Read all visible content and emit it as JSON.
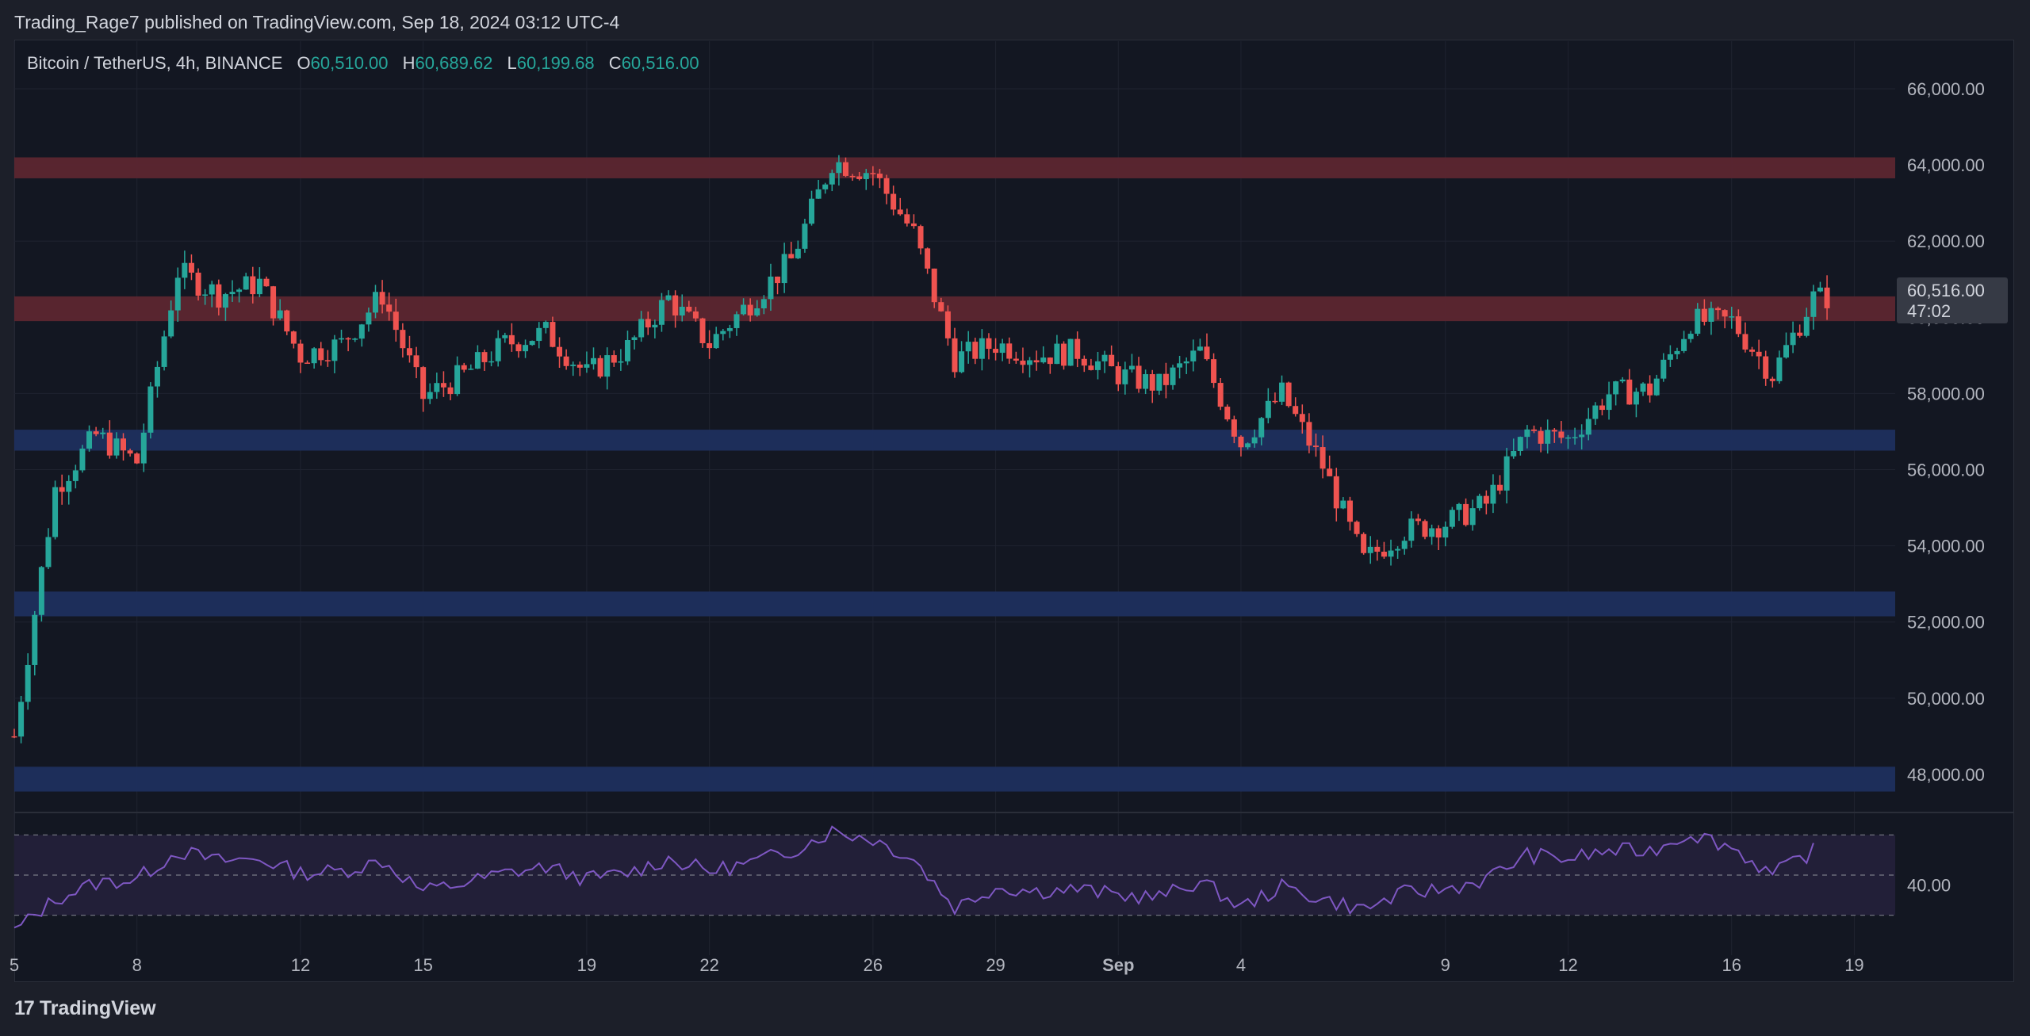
{
  "header": {
    "publisher": "Trading_Rage7 published on TradingView.com, Sep 18, 2024 03:12 UTC-4"
  },
  "legend": {
    "symbol": "Bitcoin / TetherUS, 4h, BINANCE",
    "open_label": "O",
    "open": "60,510.00",
    "high_label": "H",
    "high": "60,689.62",
    "low_label": "L",
    "low": "60,199.68",
    "close_label": "C",
    "close": "60,516.00"
  },
  "price_tag": {
    "price": "60,516.00",
    "countdown": "47:02"
  },
  "brand": {
    "logo": "17",
    "name": "TradingView"
  },
  "colors": {
    "up": "#26a69a",
    "down": "#ef5350",
    "resistance_zone": "#5c2630",
    "support_zone": "#1e2f5e",
    "rsi_line": "#7e57c2",
    "rsi_band": "#221f38"
  },
  "chart_data": [
    {
      "type": "candlestick",
      "title": "",
      "x_axis": {
        "tick_labels": [
          "5",
          "8",
          "12",
          "15",
          "19",
          "22",
          "26",
          "29",
          "Sep",
          "4",
          "9",
          "12",
          "16",
          "19"
        ],
        "tick_dates": [
          "2024-08-05",
          "2024-08-08",
          "2024-08-12",
          "2024-08-15",
          "2024-08-19",
          "2024-08-22",
          "2024-08-26",
          "2024-08-29",
          "2024-09-01",
          "2024-09-04",
          "2024-09-09",
          "2024-09-12",
          "2024-09-16",
          "2024-09-19"
        ],
        "range": [
          "2024-08-05",
          "2024-09-20"
        ]
      },
      "y_axis": {
        "tick_labels": [
          "66,000.00",
          "64,000.00",
          "62,000.00",
          "60,000.00",
          "58,000.00",
          "56,000.00",
          "54,000.00",
          "52,000.00",
          "50,000.00",
          "48,000.00"
        ],
        "range": [
          47000,
          66500
        ]
      },
      "zones": [
        {
          "kind": "resistance",
          "low": 63650,
          "high": 64200
        },
        {
          "kind": "resistance",
          "low": 59900,
          "high": 60550
        },
        {
          "kind": "support",
          "low": 56500,
          "high": 57050
        },
        {
          "kind": "support",
          "low": 52150,
          "high": 52800
        },
        {
          "kind": "support",
          "low": 47550,
          "high": 48200
        }
      ],
      "series": [
        {
          "date": "2024-08-05",
          "close": 49000
        },
        {
          "date": "2024-08-06",
          "close": 55500
        },
        {
          "date": "2024-08-07",
          "close": 56900
        },
        {
          "date": "2024-08-08",
          "close": 56200
        },
        {
          "date": "2024-08-09",
          "close": 61200
        },
        {
          "date": "2024-08-10",
          "close": 60600
        },
        {
          "date": "2024-08-11",
          "close": 60900
        },
        {
          "date": "2024-08-12",
          "close": 59000
        },
        {
          "date": "2024-08-13",
          "close": 59300
        },
        {
          "date": "2024-08-14",
          "close": 60600
        },
        {
          "date": "2024-08-15",
          "close": 57900
        },
        {
          "date": "2024-08-16",
          "close": 58500
        },
        {
          "date": "2024-08-17",
          "close": 59300
        },
        {
          "date": "2024-08-18",
          "close": 59600
        },
        {
          "date": "2024-08-19",
          "close": 58500
        },
        {
          "date": "2024-08-20",
          "close": 59200
        },
        {
          "date": "2024-08-21",
          "close": 60500
        },
        {
          "date": "2024-08-22",
          "close": 59300
        },
        {
          "date": "2024-08-23",
          "close": 60400
        },
        {
          "date": "2024-08-24",
          "close": 61500
        },
        {
          "date": "2024-08-25",
          "close": 64100
        },
        {
          "date": "2024-08-26",
          "close": 63800
        },
        {
          "date": "2024-08-27",
          "close": 62200
        },
        {
          "date": "2024-08-28",
          "close": 58900
        },
        {
          "date": "2024-08-29",
          "close": 59300
        },
        {
          "date": "2024-08-30",
          "close": 59000
        },
        {
          "date": "2024-08-31",
          "close": 59100
        },
        {
          "date": "2024-09-01",
          "close": 58500
        },
        {
          "date": "2024-09-02",
          "close": 58200
        },
        {
          "date": "2024-09-03",
          "close": 59100
        },
        {
          "date": "2024-09-04",
          "close": 56700
        },
        {
          "date": "2024-09-05",
          "close": 58000
        },
        {
          "date": "2024-09-06",
          "close": 56100
        },
        {
          "date": "2024-09-07",
          "close": 53600
        },
        {
          "date": "2024-09-08",
          "close": 54400
        },
        {
          "date": "2024-09-09",
          "close": 54600
        },
        {
          "date": "2024-09-10",
          "close": 55100
        },
        {
          "date": "2024-09-11",
          "close": 57000
        },
        {
          "date": "2024-09-12",
          "close": 56800
        },
        {
          "date": "2024-09-13",
          "close": 58000
        },
        {
          "date": "2024-09-14",
          "close": 58100
        },
        {
          "date": "2024-09-15",
          "close": 59900
        },
        {
          "date": "2024-09-16",
          "close": 59900
        },
        {
          "date": "2024-09-17",
          "close": 58500
        },
        {
          "date": "2024-09-18",
          "close": 60516
        }
      ]
    },
    {
      "type": "line",
      "title": "",
      "y_axis": {
        "tick_labels": [
          "40.00"
        ],
        "range": [
          20,
          80
        ]
      },
      "band": {
        "low": 30,
        "high": 70,
        "mid": 50
      },
      "series": [
        {
          "date": "2024-08-05",
          "value": 22
        },
        {
          "date": "2024-08-06",
          "value": 38
        },
        {
          "date": "2024-08-07",
          "value": 46
        },
        {
          "date": "2024-08-08",
          "value": 48
        },
        {
          "date": "2024-08-09",
          "value": 62
        },
        {
          "date": "2024-08-10",
          "value": 57
        },
        {
          "date": "2024-08-11",
          "value": 58
        },
        {
          "date": "2024-08-12",
          "value": 51
        },
        {
          "date": "2024-08-13",
          "value": 52
        },
        {
          "date": "2024-08-14",
          "value": 57
        },
        {
          "date": "2024-08-15",
          "value": 42
        },
        {
          "date": "2024-08-16",
          "value": 46
        },
        {
          "date": "2024-08-17",
          "value": 51
        },
        {
          "date": "2024-08-18",
          "value": 54
        },
        {
          "date": "2024-08-19",
          "value": 48
        },
        {
          "date": "2024-08-20",
          "value": 51
        },
        {
          "date": "2024-08-21",
          "value": 58
        },
        {
          "date": "2024-08-22",
          "value": 52
        },
        {
          "date": "2024-08-23",
          "value": 56
        },
        {
          "date": "2024-08-24",
          "value": 62
        },
        {
          "date": "2024-08-25",
          "value": 72
        },
        {
          "date": "2024-08-26",
          "value": 68
        },
        {
          "date": "2024-08-27",
          "value": 58
        },
        {
          "date": "2024-08-28",
          "value": 34
        },
        {
          "date": "2024-08-29",
          "value": 44
        },
        {
          "date": "2024-08-30",
          "value": 42
        },
        {
          "date": "2024-08-31",
          "value": 43
        },
        {
          "date": "2024-09-01",
          "value": 40
        },
        {
          "date": "2024-09-02",
          "value": 39
        },
        {
          "date": "2024-09-03",
          "value": 47
        },
        {
          "date": "2024-09-04",
          "value": 34
        },
        {
          "date": "2024-09-05",
          "value": 44
        },
        {
          "date": "2024-09-06",
          "value": 38
        },
        {
          "date": "2024-09-07",
          "value": 33
        },
        {
          "date": "2024-09-08",
          "value": 41
        },
        {
          "date": "2024-09-09",
          "value": 43
        },
        {
          "date": "2024-09-10",
          "value": 48
        },
        {
          "date": "2024-09-11",
          "value": 60
        },
        {
          "date": "2024-09-12",
          "value": 58
        },
        {
          "date": "2024-09-13",
          "value": 62
        },
        {
          "date": "2024-09-14",
          "value": 62
        },
        {
          "date": "2024-09-15",
          "value": 71
        },
        {
          "date": "2024-09-16",
          "value": 64
        },
        {
          "date": "2024-09-17",
          "value": 50
        },
        {
          "date": "2024-09-18",
          "value": 62
        }
      ]
    }
  ]
}
